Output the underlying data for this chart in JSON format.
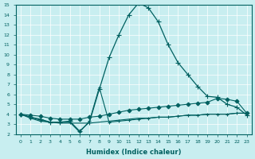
{
  "xlabel": "Humidex (Indice chaleur)",
  "ylabel": "",
  "xlim": [
    -0.5,
    23.5
  ],
  "ylim": [
    2,
    15
  ],
  "xticks": [
    0,
    1,
    2,
    3,
    4,
    5,
    6,
    7,
    8,
    9,
    10,
    11,
    12,
    13,
    14,
    15,
    16,
    17,
    18,
    19,
    20,
    21,
    22,
    23
  ],
  "yticks": [
    2,
    3,
    4,
    5,
    6,
    7,
    8,
    9,
    10,
    11,
    12,
    13,
    14,
    15
  ],
  "background_color": "#c8eef0",
  "grid_color": "#b0d8da",
  "line_color": "#006060",
  "lines": [
    {
      "x": [
        0,
        1,
        2,
        3,
        4,
        5,
        6,
        7,
        8,
        9,
        10,
        11,
        12,
        13,
        14,
        15,
        16,
        17,
        18,
        19,
        20,
        21,
        22,
        23
      ],
      "y": [
        4.0,
        3.7,
        3.5,
        3.2,
        3.2,
        3.3,
        2.3,
        3.2,
        6.5,
        9.7,
        12.0,
        14.0,
        15.2,
        14.7,
        13.3,
        11.0,
        9.2,
        8.0,
        6.8,
        5.8,
        5.7,
        5.0,
        4.7,
        3.9
      ],
      "marker": "+",
      "markersize": 4,
      "lw": 0.9
    },
    {
      "x": [
        0,
        1,
        2,
        3,
        4,
        5,
        6,
        7,
        8,
        9,
        10,
        11,
        12,
        13,
        14,
        15,
        16,
        17,
        18,
        19,
        20,
        21,
        22,
        23
      ],
      "y": [
        4.0,
        3.9,
        3.8,
        3.6,
        3.5,
        3.5,
        3.5,
        3.7,
        3.8,
        4.0,
        4.2,
        4.4,
        4.5,
        4.6,
        4.7,
        4.8,
        4.9,
        5.0,
        5.1,
        5.2,
        5.6,
        5.5,
        5.3,
        4.1
      ],
      "marker": "D",
      "markersize": 2.5,
      "lw": 0.8
    },
    {
      "x": [
        0,
        1,
        2,
        3,
        4,
        5,
        6,
        7,
        8,
        9,
        10,
        11,
        12,
        13,
        14,
        15,
        16,
        17,
        18,
        19,
        20,
        21,
        22,
        23
      ],
      "y": [
        4.0,
        3.7,
        3.4,
        3.2,
        3.1,
        3.1,
        3.1,
        3.1,
        3.2,
        3.3,
        3.4,
        3.5,
        3.6,
        3.6,
        3.7,
        3.7,
        3.8,
        3.9,
        3.9,
        4.0,
        4.0,
        4.0,
        4.1,
        4.1
      ],
      "marker": null,
      "markersize": 0,
      "lw": 0.8
    },
    {
      "x": [
        0,
        1,
        2,
        3,
        4,
        5,
        6,
        7,
        8,
        9,
        10,
        11,
        12,
        13,
        14,
        15,
        16,
        17,
        18,
        19,
        20,
        21,
        22,
        23
      ],
      "y": [
        4.0,
        3.6,
        3.3,
        3.2,
        3.2,
        3.2,
        2.2,
        3.3,
        6.7,
        3.2,
        3.3,
        3.4,
        3.5,
        3.6,
        3.7,
        3.7,
        3.8,
        3.9,
        3.9,
        4.0,
        4.0,
        4.0,
        4.1,
        4.1
      ],
      "marker": "+",
      "markersize": 3.5,
      "lw": 0.8
    }
  ]
}
